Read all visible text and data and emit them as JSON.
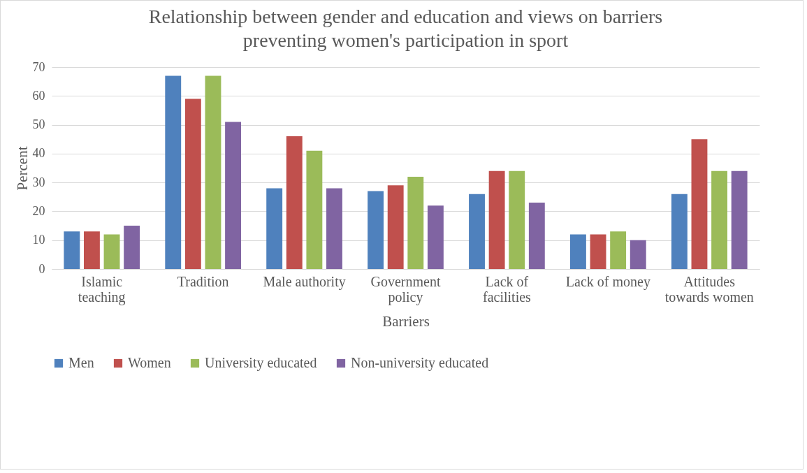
{
  "chart_data": {
    "type": "bar",
    "title": "Relationship between gender and education and views on barriers preventing women's participation in sport",
    "xlabel": "Barriers",
    "ylabel": "Percent",
    "categories": [
      "Islamic teaching",
      "Tradition",
      "Male authority",
      "Government policy",
      "Lack of facilities",
      "Lack of money",
      "Attitudes towards women"
    ],
    "series": [
      {
        "name": "Men",
        "color": "#4f81bd",
        "values": [
          13,
          67,
          28,
          27,
          26,
          12,
          26
        ]
      },
      {
        "name": "Women",
        "color": "#c0504d",
        "values": [
          13,
          59,
          46,
          29,
          34,
          12,
          45
        ]
      },
      {
        "name": "University educated",
        "color": "#9bbb59",
        "values": [
          12,
          67,
          41,
          32,
          34,
          13,
          34
        ]
      },
      {
        "name": "Non-university educated",
        "color": "#8064a2",
        "values": [
          15,
          51,
          28,
          22,
          23,
          10,
          34
        ]
      }
    ],
    "ylim": [
      0,
      70
    ],
    "yticks": [
      0,
      10,
      20,
      30,
      40,
      50,
      60,
      70
    ],
    "grid": "y",
    "legend": "bottom"
  }
}
